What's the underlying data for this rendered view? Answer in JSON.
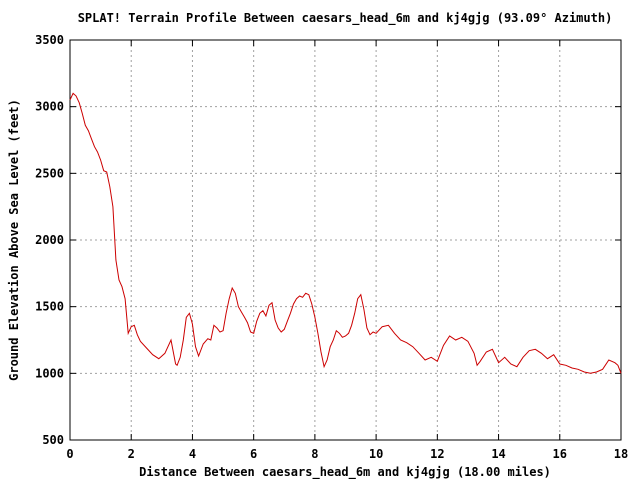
{
  "chart_data": {
    "type": "line",
    "title": "SPLAT! Terrain Profile Between caesars_head_6m and kj4gjg (93.09° Azimuth)",
    "xlabel": "Distance Between caesars_head_6m and kj4gjg (18.00 miles)",
    "ylabel": "Ground Elevation Above Sea Level (feet)",
    "xlim": [
      0,
      18
    ],
    "ylim": [
      500,
      3500
    ],
    "xticks": [
      "0",
      "2",
      "4",
      "6",
      "8",
      "10",
      "12",
      "14",
      "16",
      "18"
    ],
    "yticks": [
      "500",
      "1000",
      "1500",
      "2000",
      "2500",
      "3000",
      "3500"
    ],
    "grid": true,
    "line_color": "#cc0000",
    "series": [
      {
        "x": [
          0,
          0.1,
          0.2,
          0.3,
          0.4,
          0.5,
          0.6,
          0.7,
          0.8,
          0.9,
          1.0,
          1.1,
          1.2,
          1.3,
          1.4,
          1.5,
          1.6,
          1.7,
          1.8,
          1.9,
          2.0,
          2.1,
          2.2,
          2.3,
          2.5,
          2.7,
          2.9,
          3.1,
          3.3,
          3.45,
          3.5,
          3.6,
          3.7,
          3.8,
          3.9,
          4.0,
          4.1,
          4.2,
          4.35,
          4.5,
          4.6,
          4.7,
          4.8,
          4.9,
          5.0,
          5.1,
          5.2,
          5.3,
          5.4,
          5.5,
          5.6,
          5.7,
          5.8,
          5.9,
          6.0,
          6.1,
          6.2,
          6.3,
          6.4,
          6.5,
          6.6,
          6.7,
          6.8,
          6.9,
          7.0,
          7.1,
          7.2,
          7.3,
          7.4,
          7.5,
          7.6,
          7.7,
          7.8,
          7.9,
          8.0,
          8.1,
          8.2,
          8.3,
          8.4,
          8.5,
          8.6,
          8.7,
          8.8,
          8.9,
          9.0,
          9.1,
          9.2,
          9.3,
          9.4,
          9.5,
          9.6,
          9.7,
          9.8,
          9.9,
          10.0,
          10.2,
          10.4,
          10.6,
          10.8,
          11.0,
          11.2,
          11.4,
          11.6,
          11.8,
          12.0,
          12.2,
          12.4,
          12.6,
          12.8,
          13.0,
          13.2,
          13.3,
          13.4,
          13.6,
          13.8,
          14.0,
          14.2,
          14.4,
          14.6,
          14.8,
          15.0,
          15.2,
          15.4,
          15.6,
          15.8,
          16.0,
          16.2,
          16.4,
          16.6,
          16.8,
          17.0,
          17.2,
          17.4,
          17.6,
          17.8,
          17.9,
          18.0
        ],
        "y": [
          3050,
          3100,
          3080,
          3030,
          2950,
          2860,
          2820,
          2760,
          2700,
          2660,
          2600,
          2520,
          2510,
          2400,
          2250,
          1850,
          1700,
          1650,
          1560,
          1300,
          1350,
          1360,
          1290,
          1240,
          1190,
          1140,
          1110,
          1150,
          1250,
          1070,
          1060,
          1120,
          1250,
          1420,
          1450,
          1370,
          1200,
          1130,
          1220,
          1260,
          1250,
          1360,
          1340,
          1310,
          1320,
          1450,
          1560,
          1640,
          1600,
          1500,
          1460,
          1420,
          1380,
          1310,
          1300,
          1390,
          1450,
          1470,
          1430,
          1510,
          1530,
          1400,
          1340,
          1310,
          1330,
          1390,
          1450,
          1520,
          1560,
          1580,
          1570,
          1600,
          1590,
          1520,
          1420,
          1300,
          1160,
          1050,
          1100,
          1200,
          1250,
          1320,
          1300,
          1270,
          1280,
          1300,
          1360,
          1450,
          1560,
          1590,
          1480,
          1340,
          1290,
          1310,
          1300,
          1350,
          1360,
          1300,
          1250,
          1230,
          1200,
          1150,
          1100,
          1120,
          1090,
          1210,
          1280,
          1250,
          1270,
          1240,
          1150,
          1060,
          1090,
          1160,
          1180,
          1080,
          1120,
          1070,
          1050,
          1120,
          1170,
          1180,
          1150,
          1110,
          1140,
          1070,
          1060,
          1040,
          1030,
          1010,
          1000,
          1010,
          1030,
          1100,
          1080,
          1060,
          1000
        ]
      }
    ]
  }
}
